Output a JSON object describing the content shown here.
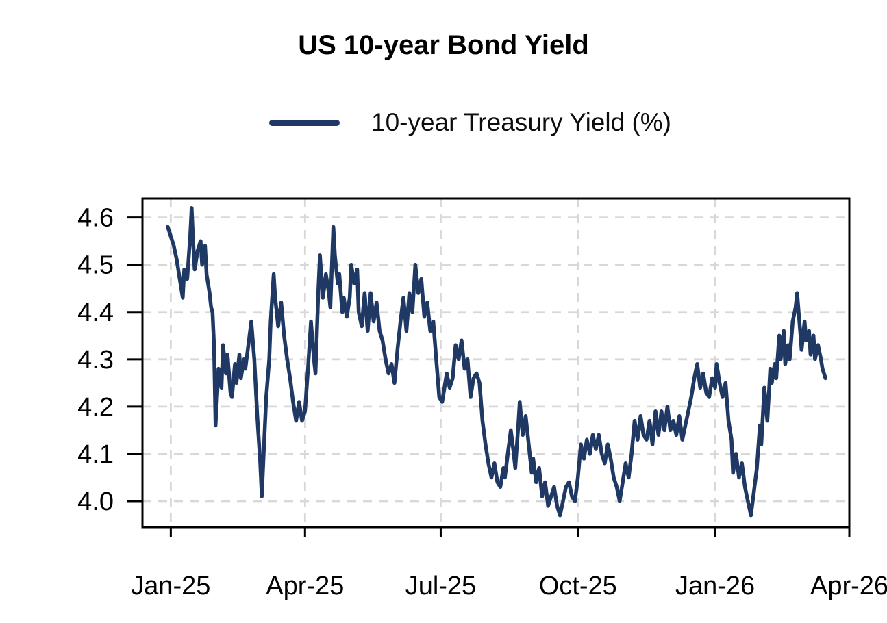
{
  "chart_data": {
    "type": "line",
    "title": "US 10-year Bond Yield",
    "legend": [
      {
        "label": "10-year Treasury Yield (%)",
        "color": "#1f3864"
      }
    ],
    "x_axis": {
      "tick_labels": [
        "Jan-25",
        "Apr-25",
        "Jul-25",
        "Oct-25",
        "Jan-26",
        "Apr-26"
      ],
      "tick_days": [
        0,
        90,
        181,
        273,
        365,
        455
      ],
      "xlim_days": [
        -19,
        455
      ],
      "x_unit": "days since Jan-25 tick"
    },
    "y_axis": {
      "tick_labels": [
        "4.0",
        "4.1",
        "4.2",
        "4.3",
        "4.4",
        "4.5",
        "4.6"
      ],
      "tick_values": [
        4.0,
        4.1,
        4.2,
        4.3,
        4.4,
        4.5,
        4.6
      ],
      "ylim": [
        3.945,
        4.64
      ]
    },
    "grid": {
      "show": true,
      "dashed": true,
      "color": "#d8d8d8"
    },
    "frame_color": "#000000",
    "series": [
      {
        "name": "10-year Treasury Yield (%)",
        "color": "#1f3864",
        "points": [
          [
            -2,
            4.58
          ],
          [
            0,
            4.56
          ],
          [
            2,
            4.54
          ],
          [
            4,
            4.51
          ],
          [
            6,
            4.47
          ],
          [
            8,
            4.43
          ],
          [
            9,
            4.49
          ],
          [
            11,
            4.47
          ],
          [
            13,
            4.56
          ],
          [
            14,
            4.62
          ],
          [
            15,
            4.55
          ],
          [
            16,
            4.49
          ],
          [
            18,
            4.53
          ],
          [
            20,
            4.55
          ],
          [
            21,
            4.5
          ],
          [
            23,
            4.54
          ],
          [
            24,
            4.48
          ],
          [
            26,
            4.44
          ],
          [
            27,
            4.41
          ],
          [
            28,
            4.4
          ],
          [
            29,
            4.33
          ],
          [
            30,
            4.16
          ],
          [
            32,
            4.28
          ],
          [
            34,
            4.24
          ],
          [
            35,
            4.33
          ],
          [
            37,
            4.27
          ],
          [
            38,
            4.31
          ],
          [
            40,
            4.23
          ],
          [
            41,
            4.22
          ],
          [
            43,
            4.29
          ],
          [
            44,
            4.25
          ],
          [
            46,
            4.31
          ],
          [
            47,
            4.26
          ],
          [
            49,
            4.3
          ],
          [
            50,
            4.28
          ],
          [
            52,
            4.33
          ],
          [
            54,
            4.38
          ],
          [
            56,
            4.3
          ],
          [
            58,
            4.18
          ],
          [
            60,
            4.08
          ],
          [
            61,
            4.01
          ],
          [
            63,
            4.15
          ],
          [
            64,
            4.22
          ],
          [
            66,
            4.3
          ],
          [
            67,
            4.38
          ],
          [
            69,
            4.48
          ],
          [
            70,
            4.43
          ],
          [
            72,
            4.37
          ],
          [
            74,
            4.42
          ],
          [
            76,
            4.35
          ],
          [
            78,
            4.3
          ],
          [
            80,
            4.26
          ],
          [
            82,
            4.21
          ],
          [
            84,
            4.17
          ],
          [
            86,
            4.21
          ],
          [
            88,
            4.17
          ],
          [
            90,
            4.19
          ],
          [
            92,
            4.28
          ],
          [
            94,
            4.38
          ],
          [
            96,
            4.3
          ],
          [
            97,
            4.27
          ],
          [
            99,
            4.45
          ],
          [
            100,
            4.52
          ],
          [
            102,
            4.43
          ],
          [
            104,
            4.48
          ],
          [
            106,
            4.44
          ],
          [
            107,
            4.41
          ],
          [
            109,
            4.58
          ],
          [
            110,
            4.52
          ],
          [
            112,
            4.46
          ],
          [
            113,
            4.48
          ],
          [
            115,
            4.4
          ],
          [
            116,
            4.43
          ],
          [
            118,
            4.39
          ],
          [
            120,
            4.43
          ],
          [
            121,
            4.5
          ],
          [
            123,
            4.46
          ],
          [
            125,
            4.49
          ],
          [
            126,
            4.4
          ],
          [
            128,
            4.37
          ],
          [
            130,
            4.44
          ],
          [
            132,
            4.36
          ],
          [
            134,
            4.44
          ],
          [
            136,
            4.38
          ],
          [
            138,
            4.42
          ],
          [
            140,
            4.36
          ],
          [
            142,
            4.34
          ],
          [
            144,
            4.3
          ],
          [
            146,
            4.27
          ],
          [
            148,
            4.29
          ],
          [
            150,
            4.25
          ],
          [
            152,
            4.32
          ],
          [
            154,
            4.38
          ],
          [
            156,
            4.43
          ],
          [
            158,
            4.36
          ],
          [
            160,
            4.44
          ],
          [
            162,
            4.4
          ],
          [
            164,
            4.5
          ],
          [
            166,
            4.44
          ],
          [
            168,
            4.47
          ],
          [
            170,
            4.39
          ],
          [
            172,
            4.42
          ],
          [
            174,
            4.36
          ],
          [
            176,
            4.38
          ],
          [
            178,
            4.3
          ],
          [
            180,
            4.22
          ],
          [
            182,
            4.21
          ],
          [
            184,
            4.25
          ],
          [
            185,
            4.27
          ],
          [
            187,
            4.24
          ],
          [
            189,
            4.26
          ],
          [
            191,
            4.33
          ],
          [
            193,
            4.3
          ],
          [
            195,
            4.34
          ],
          [
            197,
            4.28
          ],
          [
            199,
            4.3
          ],
          [
            201,
            4.22
          ],
          [
            203,
            4.26
          ],
          [
            205,
            4.27
          ],
          [
            207,
            4.25
          ],
          [
            209,
            4.17
          ],
          [
            211,
            4.12
          ],
          [
            213,
            4.08
          ],
          [
            215,
            4.05
          ],
          [
            217,
            4.08
          ],
          [
            219,
            4.04
          ],
          [
            221,
            4.03
          ],
          [
            223,
            4.07
          ],
          [
            224,
            4.05
          ],
          [
            226,
            4.1
          ],
          [
            228,
            4.15
          ],
          [
            230,
            4.1
          ],
          [
            231,
            4.07
          ],
          [
            233,
            4.16
          ],
          [
            234,
            4.21
          ],
          [
            236,
            4.14
          ],
          [
            238,
            4.18
          ],
          [
            240,
            4.12
          ],
          [
            242,
            4.06
          ],
          [
            243,
            4.09
          ],
          [
            245,
            4.04
          ],
          [
            247,
            4.07
          ],
          [
            249,
            4.01
          ],
          [
            251,
            4.04
          ],
          [
            253,
            3.99
          ],
          [
            255,
            4.01
          ],
          [
            257,
            4.03
          ],
          [
            259,
            3.99
          ],
          [
            261,
            3.97
          ],
          [
            263,
            4.0
          ],
          [
            265,
            4.03
          ],
          [
            267,
            4.04
          ],
          [
            269,
            4.01
          ],
          [
            271,
            4.0
          ],
          [
            273,
            4.05
          ],
          [
            275,
            4.12
          ],
          [
            277,
            4.09
          ],
          [
            279,
            4.13
          ],
          [
            281,
            4.1
          ],
          [
            283,
            4.14
          ],
          [
            285,
            4.11
          ],
          [
            287,
            4.14
          ],
          [
            289,
            4.1
          ],
          [
            291,
            4.08
          ],
          [
            293,
            4.12
          ],
          [
            295,
            4.09
          ],
          [
            297,
            4.05
          ],
          [
            299,
            4.03
          ],
          [
            301,
            4.0
          ],
          [
            303,
            4.04
          ],
          [
            305,
            4.08
          ],
          [
            307,
            4.05
          ],
          [
            309,
            4.1
          ],
          [
            311,
            4.17
          ],
          [
            313,
            4.13
          ],
          [
            315,
            4.18
          ],
          [
            317,
            4.14
          ],
          [
            319,
            4.13
          ],
          [
            321,
            4.17
          ],
          [
            323,
            4.12
          ],
          [
            325,
            4.19
          ],
          [
            327,
            4.14
          ],
          [
            329,
            4.19
          ],
          [
            331,
            4.15
          ],
          [
            333,
            4.2
          ],
          [
            335,
            4.15
          ],
          [
            337,
            4.17
          ],
          [
            339,
            4.14
          ],
          [
            341,
            4.18
          ],
          [
            343,
            4.13
          ],
          [
            345,
            4.16
          ],
          [
            347,
            4.19
          ],
          [
            349,
            4.22
          ],
          [
            351,
            4.26
          ],
          [
            353,
            4.29
          ],
          [
            355,
            4.24
          ],
          [
            357,
            4.27
          ],
          [
            359,
            4.23
          ],
          [
            361,
            4.22
          ],
          [
            363,
            4.26
          ],
          [
            365,
            4.24
          ],
          [
            366,
            4.29
          ],
          [
            368,
            4.25
          ],
          [
            370,
            4.22
          ],
          [
            372,
            4.25
          ],
          [
            374,
            4.17
          ],
          [
            376,
            4.13
          ],
          [
            377,
            4.06
          ],
          [
            379,
            4.1
          ],
          [
            381,
            4.05
          ],
          [
            383,
            4.08
          ],
          [
            385,
            4.03
          ],
          [
            387,
            4.0
          ],
          [
            389,
            3.97
          ],
          [
            391,
            4.02
          ],
          [
            393,
            4.07
          ],
          [
            395,
            4.16
          ],
          [
            396,
            4.12
          ],
          [
            398,
            4.24
          ],
          [
            400,
            4.17
          ],
          [
            402,
            4.28
          ],
          [
            403,
            4.25
          ],
          [
            405,
            4.29
          ],
          [
            406,
            4.26
          ],
          [
            408,
            4.35
          ],
          [
            409,
            4.3
          ],
          [
            411,
            4.36
          ],
          [
            412,
            4.29
          ],
          [
            414,
            4.33
          ],
          [
            415,
            4.3
          ],
          [
            417,
            4.38
          ],
          [
            419,
            4.41
          ],
          [
            420,
            4.44
          ],
          [
            422,
            4.36
          ],
          [
            423,
            4.32
          ],
          [
            425,
            4.38
          ],
          [
            426,
            4.34
          ],
          [
            428,
            4.36
          ],
          [
            429,
            4.31
          ],
          [
            431,
            4.35
          ],
          [
            432,
            4.3
          ],
          [
            434,
            4.33
          ],
          [
            436,
            4.3
          ],
          [
            437,
            4.28
          ],
          [
            439,
            4.26
          ]
        ]
      }
    ]
  }
}
